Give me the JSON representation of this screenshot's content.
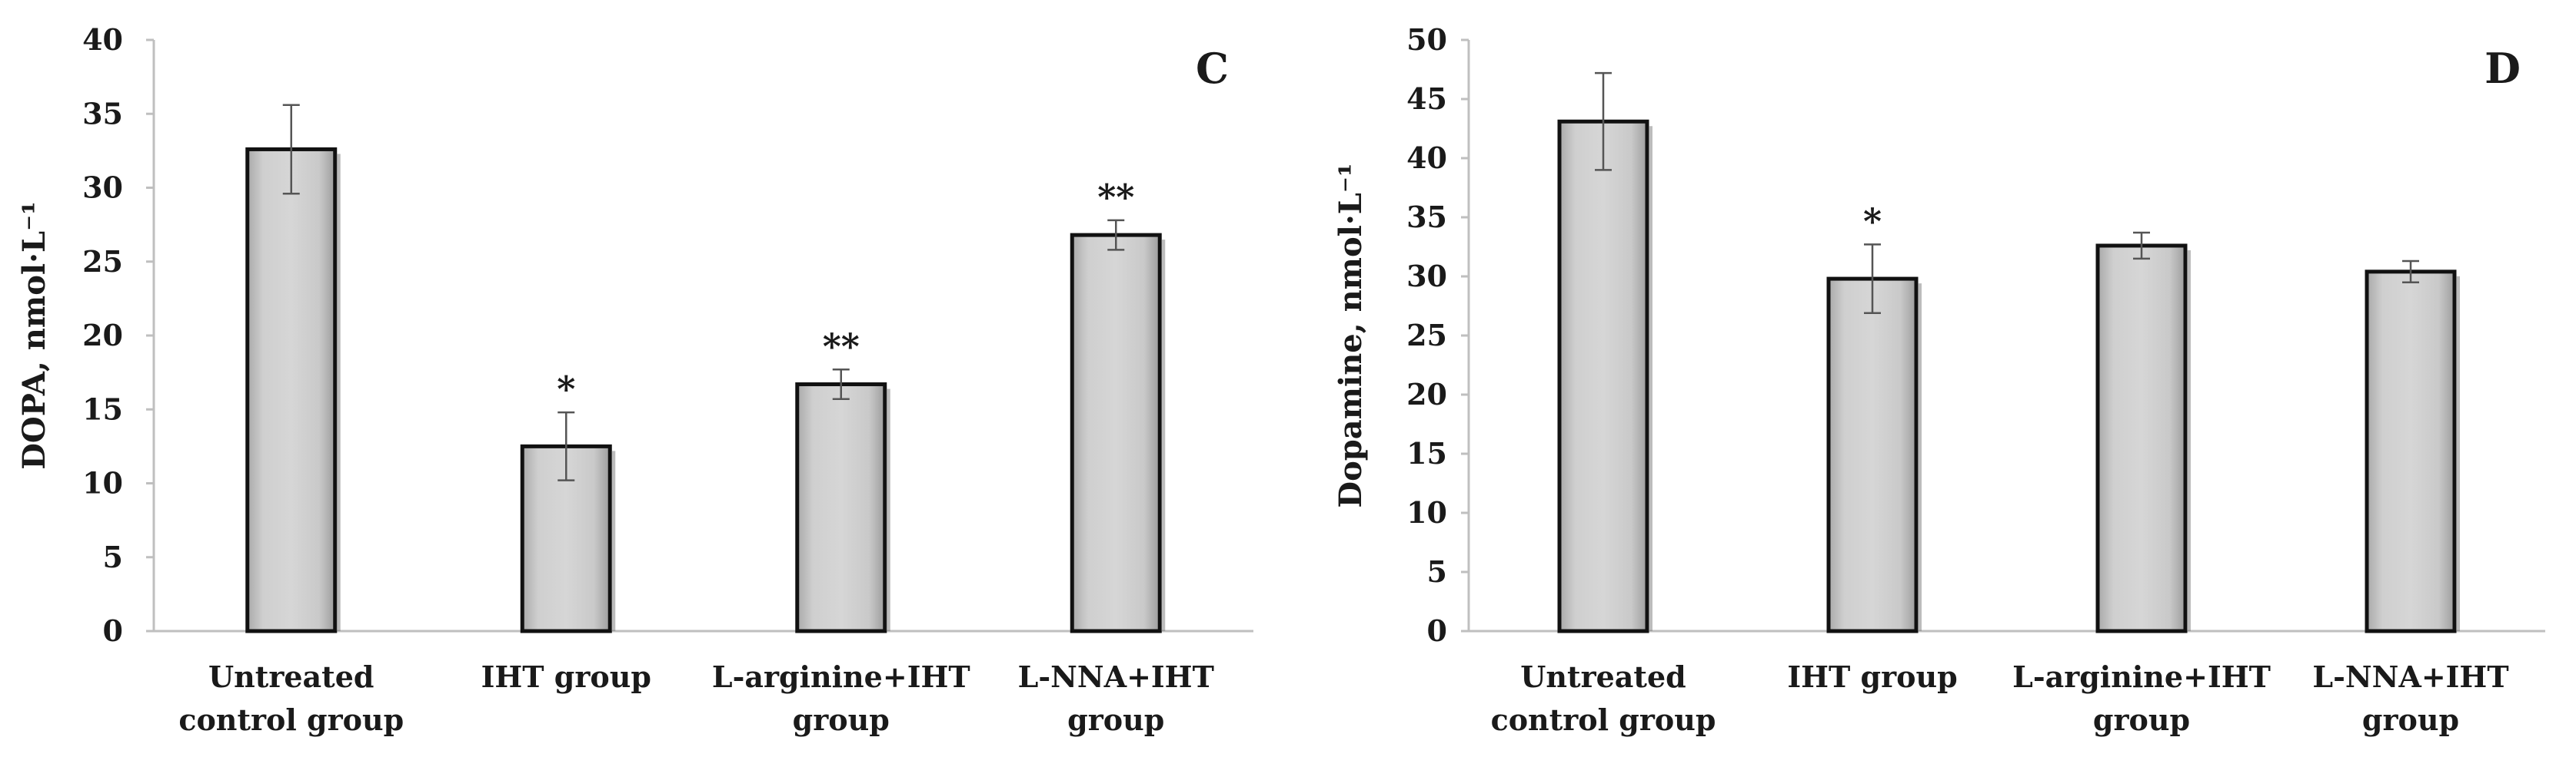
{
  "chart_data": [
    {
      "type": "bar",
      "panel_label": "C",
      "title": "",
      "xlabel": "",
      "ylabel": "DOPA, nmol·L⁻¹",
      "ylim": [
        0,
        40
      ],
      "yticks": [
        0,
        5,
        10,
        15,
        20,
        25,
        30,
        35,
        40
      ],
      "categories": [
        [
          "Untreated",
          "control group"
        ],
        [
          "IHT group"
        ],
        [
          "L-arginine+IHT",
          "group"
        ],
        [
          "L-NNA+IHT",
          "group"
        ]
      ],
      "values": [
        32.6,
        12.5,
        16.7,
        26.8
      ],
      "errors": [
        3.0,
        2.3,
        1.0,
        1.0
      ],
      "annotations": [
        "",
        "*",
        "**",
        "**"
      ],
      "bar_color": "#c8c8c8"
    },
    {
      "type": "bar",
      "panel_label": "D",
      "title": "",
      "xlabel": "",
      "ylabel": "Dopamine, nmol·L⁻¹",
      "ylim": [
        0,
        50
      ],
      "yticks": [
        0,
        5,
        10,
        15,
        20,
        25,
        30,
        35,
        40,
        45,
        50
      ],
      "categories": [
        [
          "Untreated",
          "control group"
        ],
        [
          "IHT group"
        ],
        [
          "L-arginine+IHT",
          "group"
        ],
        [
          "L-NNA+IHT",
          "group"
        ]
      ],
      "values": [
        43.1,
        29.8,
        32.6,
        30.4
      ],
      "errors": [
        4.1,
        2.9,
        1.1,
        0.9
      ],
      "annotations": [
        "",
        "*",
        "",
        ""
      ],
      "bar_color": "#c8c8c8"
    }
  ]
}
